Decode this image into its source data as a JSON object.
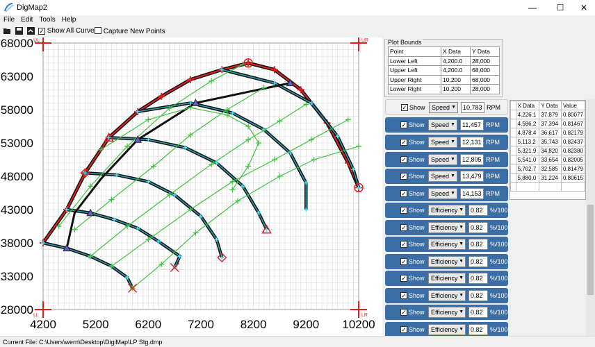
{
  "window": {
    "title": "DigMap2"
  },
  "menu": [
    "File",
    "Edit",
    "Tools",
    "Help"
  ],
  "toolbar": {
    "show_all_curves": "Show All Curves",
    "capture_new_points": "Capture New Points"
  },
  "plot": {
    "corner_labels": {
      "ul": "UL",
      "ur": "UR",
      "ll": "LL",
      "lr": "LR"
    },
    "x_ticks": [
      "4200",
      "5200",
      "6200",
      "7200",
      "8200",
      "9200",
      "10200"
    ],
    "y_ticks": [
      "68000",
      "63000",
      "58000",
      "53000",
      "48000",
      "43000",
      "38000",
      "33000",
      "28000"
    ]
  },
  "chart_data": {
    "type": "line",
    "xlim": [
      4200,
      10200
    ],
    "ylim": [
      28000,
      68000
    ],
    "grid": true,
    "series": [
      {
        "values": [
          [
            4200,
            38000
          ],
          [
            4650,
            43000
          ],
          [
            5000,
            48500
          ],
          [
            5450,
            53800
          ],
          [
            6000,
            57700
          ],
          [
            6450,
            60000
          ],
          [
            7000,
            62500
          ],
          [
            7600,
            64000
          ],
          [
            8100,
            65000
          ],
          [
            8600,
            64000
          ],
          [
            9100,
            61000
          ],
          [
            9600,
            56000
          ],
          [
            10000,
            50000
          ],
          [
            10200,
            46300
          ]
        ]
      },
      {
        "values": [
          [
            4200,
            38000
          ],
          [
            4650,
            37200
          ],
          [
            5100,
            36000
          ],
          [
            5500,
            34500
          ],
          [
            5800,
            32800
          ],
          [
            5900,
            31200
          ]
        ]
      },
      {
        "values": [
          [
            4650,
            43000
          ],
          [
            5100,
            42500
          ],
          [
            5550,
            41500
          ],
          [
            6000,
            40200
          ],
          [
            6400,
            38200
          ],
          [
            6800,
            36000
          ],
          [
            6700,
            34300
          ]
        ]
      },
      {
        "values": [
          [
            5000,
            48500
          ],
          [
            5600,
            48200
          ],
          [
            6200,
            47200
          ],
          [
            6700,
            45200
          ],
          [
            7200,
            42000
          ],
          [
            7500,
            38500
          ],
          [
            7600,
            35800
          ]
        ]
      },
      {
        "values": [
          [
            5450,
            53800
          ],
          [
            6200,
            53500
          ],
          [
            6900,
            52300
          ],
          [
            7500,
            50000
          ],
          [
            8000,
            46500
          ],
          [
            8300,
            42500
          ],
          [
            8450,
            40000
          ]
        ]
      },
      {
        "values": [
          [
            6000,
            57700
          ],
          [
            7000,
            59000
          ],
          [
            7800,
            57500
          ],
          [
            8400,
            55000
          ],
          [
            8900,
            51500
          ],
          [
            9200,
            47000
          ],
          [
            9200,
            43000
          ]
        ]
      },
      {
        "values": [
          [
            7600,
            64000
          ],
          [
            8600,
            62000
          ],
          [
            9300,
            59000
          ],
          [
            9800,
            54000
          ],
          [
            10100,
            49000
          ],
          [
            10200,
            46300
          ]
        ]
      },
      {
        "values": [
          [
            4650,
            37200
          ],
          [
            4800,
            42500
          ],
          [
            5300,
            47600
          ],
          [
            6000,
            53500
          ],
          [
            7100,
            59000
          ],
          [
            8900,
            62000
          ]
        ]
      },
      {
        "values": [
          [
            5900,
            31200
          ],
          [
            6450,
            34800
          ],
          [
            7100,
            39500
          ],
          [
            7900,
            44300
          ],
          [
            8700,
            48000
          ],
          [
            9350,
            50500
          ],
          [
            10200,
            52500
          ]
        ]
      },
      {
        "values": [
          [
            5500,
            34500
          ],
          [
            6200,
            38500
          ],
          [
            7000,
            43000
          ],
          [
            7800,
            47200
          ],
          [
            8600,
            50500
          ],
          [
            9300,
            53500
          ],
          [
            10000,
            56500
          ]
        ]
      },
      {
        "values": [
          [
            5100,
            36000
          ],
          [
            5800,
            40500
          ],
          [
            6600,
            45200
          ],
          [
            7400,
            49800
          ],
          [
            8100,
            53500
          ],
          [
            8700,
            56300
          ],
          [
            9200,
            58800
          ]
        ]
      },
      {
        "values": [
          [
            4800,
            40000
          ],
          [
            5500,
            44500
          ],
          [
            6300,
            49500
          ],
          [
            7000,
            54200
          ],
          [
            7700,
            58000
          ],
          [
            8400,
            61300
          ]
        ]
      },
      {
        "values": [
          [
            4500,
            40500
          ],
          [
            5100,
            46500
          ],
          [
            5800,
            52500
          ],
          [
            6600,
            58200
          ],
          [
            7400,
            62300
          ],
          [
            8000,
            64800
          ]
        ]
      },
      {
        "values": [
          [
            5300,
            52000
          ],
          [
            6200,
            56500
          ],
          [
            7000,
            58300
          ],
          [
            7700,
            57200
          ],
          [
            8100,
            55500
          ],
          [
            8300,
            53000
          ],
          [
            8100,
            49500
          ],
          [
            7800,
            46000
          ]
        ]
      }
    ]
  },
  "plot_bounds": {
    "title": "Plot Bounds",
    "headers": [
      "Point",
      "X Data",
      "Y Data"
    ],
    "rows": [
      [
        "Lower Left",
        "4,200.0",
        "28,000"
      ],
      [
        "Upper Left",
        "4,200.0",
        "68,000"
      ],
      [
        "Upper Right",
        "10,200",
        "68,000"
      ],
      [
        "Lower Right",
        "10,200",
        "28,000"
      ]
    ]
  },
  "curves": [
    {
      "show": "Show",
      "type": "Speed",
      "value": "10,783",
      "unit": "RPM"
    },
    {
      "show": "Show",
      "type": "Speed",
      "value": "11,457",
      "unit": "RPM"
    },
    {
      "show": "Show",
      "type": "Speed",
      "value": "12,131",
      "unit": "RPM"
    },
    {
      "show": "Show",
      "type": "Speed",
      "value": "12,805",
      "unit": "RPM"
    },
    {
      "show": "Show",
      "type": "Speed",
      "value": "13,479",
      "unit": "RPM"
    },
    {
      "show": "Show",
      "type": "Speed",
      "value": "14,153",
      "unit": "RPM"
    },
    {
      "show": "Show",
      "type": "Efficiency",
      "value": "0.82",
      "unit": "%/100"
    },
    {
      "show": "Show",
      "type": "Efficiency",
      "value": "0.82",
      "unit": "%/100"
    },
    {
      "show": "Show",
      "type": "Efficiency",
      "value": "0.82",
      "unit": "%/100"
    },
    {
      "show": "Show",
      "type": "Efficiency",
      "value": "0.82",
      "unit": "%/100"
    },
    {
      "show": "Show",
      "type": "Efficiency",
      "value": "0.82",
      "unit": "%/100"
    },
    {
      "show": "Show",
      "type": "Efficiency",
      "value": "0.82",
      "unit": "%/100"
    },
    {
      "show": "Show",
      "type": "Efficiency",
      "value": "0.82",
      "unit": "%/100"
    },
    {
      "show": "Show",
      "type": "Efficiency",
      "value": "0.82",
      "unit": "%/100"
    }
  ],
  "points_table": {
    "headers": [
      "X Data",
      "Y Data",
      "Value"
    ],
    "rows": [
      [
        "4,226.1",
        "37,879",
        "0.80077"
      ],
      [
        "4,586.2",
        "37,394",
        "0.81467"
      ],
      [
        "4,878.4",
        "36,617",
        "0.82179"
      ],
      [
        "5,113.2",
        "35,743",
        "0.82437"
      ],
      [
        "5,321.9",
        "34,820",
        "0.82380"
      ],
      [
        "5,541.0",
        "33,654",
        "0.82005"
      ],
      [
        "5,702.7",
        "32,585",
        "0.81479"
      ],
      [
        "5,880.0",
        "31,224",
        "0.80615"
      ]
    ]
  },
  "status": {
    "text": "Current File:  C:\\Users\\wern\\Desktop\\DigiMap\\LP Stg.dmp"
  }
}
